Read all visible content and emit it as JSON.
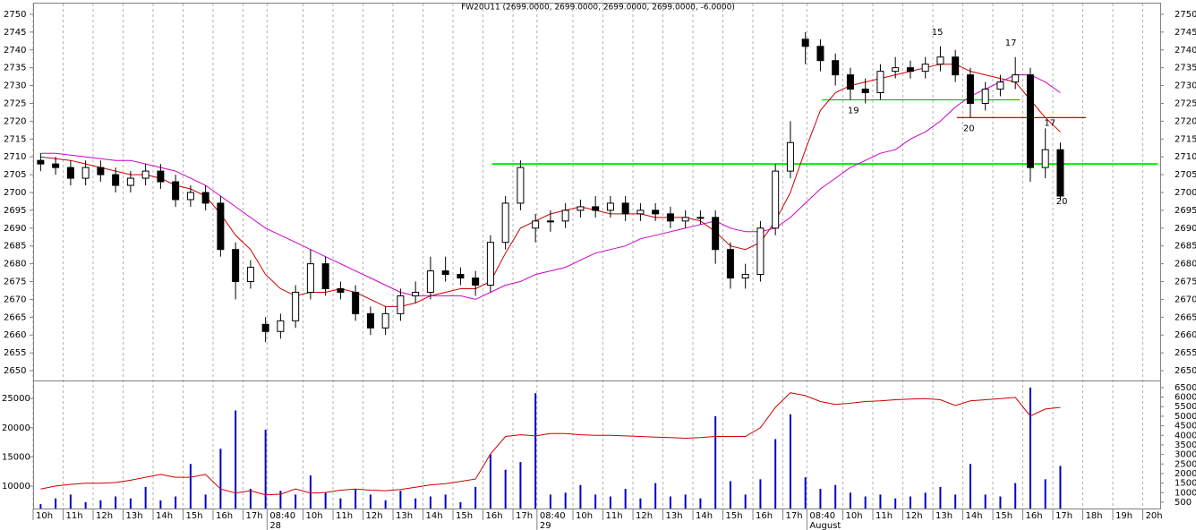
{
  "chart_data": {
    "type": "candlestick",
    "title": "FW20U11 (2699.0000, 2699.0000, 2699.0000, 2699.0000, -6.0000)",
    "xlim": [
      0,
      37.58
    ],
    "xticks": [
      {
        "value": 0,
        "label": "10h"
      },
      {
        "value": 1,
        "label": "11h"
      },
      {
        "value": 2,
        "label": "12h"
      },
      {
        "value": 3,
        "label": "13h"
      },
      {
        "value": 4,
        "label": "14h"
      },
      {
        "value": 5,
        "label": "15h"
      },
      {
        "value": 6,
        "label": "16h"
      },
      {
        "value": 7,
        "label": "17h"
      },
      {
        "value": 7.8,
        "label": "08:40"
      },
      {
        "value": 9,
        "label": "10h"
      },
      {
        "value": 10,
        "label": "11h"
      },
      {
        "value": 11,
        "label": "12h"
      },
      {
        "value": 12,
        "label": "13h"
      },
      {
        "value": 13,
        "label": "14h"
      },
      {
        "value": 14,
        "label": "15h"
      },
      {
        "value": 15,
        "label": "16h"
      },
      {
        "value": 16,
        "label": "17h"
      },
      {
        "value": 16.8,
        "label": "08:40"
      },
      {
        "value": 18,
        "label": "10h"
      },
      {
        "value": 19,
        "label": "11h"
      },
      {
        "value": 20,
        "label": "12h"
      },
      {
        "value": 21,
        "label": "13h"
      },
      {
        "value": 22,
        "label": "14h"
      },
      {
        "value": 23,
        "label": "15h"
      },
      {
        "value": 24,
        "label": "16h"
      },
      {
        "value": 25,
        "label": "17h"
      },
      {
        "value": 25.8,
        "label": "08:40"
      },
      {
        "value": 27,
        "label": "10h"
      },
      {
        "value": 28,
        "label": "11h"
      },
      {
        "value": 29,
        "label": "12h"
      },
      {
        "value": 30,
        "label": "13h"
      },
      {
        "value": 31,
        "label": "14h"
      },
      {
        "value": 32,
        "label": "15h"
      },
      {
        "value": 33,
        "label": "16h"
      },
      {
        "value": 34,
        "label": "17h"
      },
      {
        "value": 35,
        "label": "18h"
      },
      {
        "value": 36,
        "label": "19h"
      },
      {
        "value": 37,
        "label": "20h"
      }
    ],
    "xdates": [
      {
        "value": 7.8,
        "label": "28"
      },
      {
        "value": 16.8,
        "label": "29"
      },
      {
        "value": 25.8,
        "label": "August"
      }
    ],
    "ylim": [
      2647.25,
      2753
    ],
    "yticks": [
      2650,
      2655,
      2660,
      2665,
      2670,
      2675,
      2680,
      2685,
      2690,
      2695,
      2700,
      2705,
      2710,
      2715,
      2720,
      2725,
      2730,
      2735,
      2740,
      2745,
      2750
    ],
    "up_color": "#ffffff",
    "down_color": "#000000",
    "x": [
      0.25,
      0.75,
      1.25,
      1.75,
      2.25,
      2.75,
      3.25,
      3.75,
      4.25,
      4.75,
      5.25,
      5.75,
      6.25,
      6.75,
      7.25,
      7.75,
      8.25,
      8.75,
      9.25,
      9.75,
      10.25,
      10.75,
      11.25,
      11.75,
      12.25,
      12.75,
      13.25,
      13.75,
      14.25,
      14.75,
      15.25,
      15.75,
      16.25,
      16.75,
      17.25,
      17.75,
      18.25,
      18.75,
      19.25,
      19.75,
      20.25,
      20.75,
      21.25,
      21.75,
      22.25,
      22.75,
      23.25,
      23.75,
      24.25,
      24.75,
      25.25,
      25.75,
      26.25,
      26.75,
      27.25,
      27.75,
      28.25,
      28.75,
      29.25,
      29.75,
      30.25,
      30.75,
      31.25,
      31.75,
      32.25,
      32.75,
      33.25,
      33.75,
      34.25
    ],
    "open": [
      2709,
      2708,
      2707,
      2704,
      2707,
      2705,
      2702,
      2704,
      2706,
      2703,
      2698,
      2700,
      2697,
      2684,
      2675,
      2663,
      2661,
      2664,
      2672,
      2680,
      2673,
      2672,
      2666,
      2662,
      2666,
      2671,
      2672,
      2678,
      2677,
      2676,
      2674,
      2686,
      2697,
      2690,
      2692,
      2692,
      2695,
      2696,
      2695,
      2697,
      2694,
      2695,
      2694,
      2692,
      2693,
      2693,
      2684,
      2676,
      2677,
      2690,
      2706,
      2743,
      2741,
      2737,
      2733,
      2729,
      2728,
      2734,
      2735,
      2734,
      2736,
      2738,
      2733,
      2725,
      2729,
      2731,
      2733,
      2707,
      2712
    ],
    "high": [
      2711,
      2710,
      2709,
      2709,
      2709,
      2707,
      2706,
      2708,
      2708,
      2705,
      2702,
      2702,
      2699,
      2686,
      2681,
      2665,
      2666,
      2674,
      2684,
      2682,
      2675,
      2674,
      2668,
      2668,
      2673,
      2675,
      2682,
      2682,
      2679,
      2678,
      2688,
      2699,
      2709,
      2694,
      2695,
      2697,
      2698,
      2699,
      2699,
      2699,
      2697,
      2697,
      2696,
      2695,
      2695,
      2695,
      2686,
      2680,
      2692,
      2708,
      2720,
      2745,
      2743,
      2739,
      2735,
      2732,
      2736,
      2738,
      2737,
      2738,
      2741,
      2740,
      2735,
      2731,
      2733,
      2738,
      2735,
      2718,
      2714
    ],
    "low": [
      2706,
      2705,
      2702,
      2702,
      2703,
      2700,
      2700,
      2702,
      2701,
      2696,
      2696,
      2695,
      2682,
      2670,
      2673,
      2658,
      2659,
      2662,
      2670,
      2671,
      2670,
      2664,
      2660,
      2660,
      2664,
      2669,
      2670,
      2675,
      2674,
      2671,
      2672,
      2684,
      2695,
      2686,
      2689,
      2690,
      2693,
      2693,
      2693,
      2692,
      2692,
      2692,
      2690,
      2690,
      2691,
      2680,
      2673,
      2673,
      2675,
      2688,
      2704,
      2736,
      2734,
      2730,
      2726,
      2725,
      2726,
      2732,
      2732,
      2732,
      2734,
      2731,
      2721,
      2723,
      2727,
      2729,
      2703,
      2704,
      2698
    ],
    "close": [
      2708,
      2707,
      2704,
      2707,
      2705,
      2702,
      2704,
      2706,
      2703,
      2698,
      2700,
      2697,
      2684,
      2675,
      2679,
      2661,
      2664,
      2672,
      2680,
      2673,
      2672,
      2666,
      2662,
      2666,
      2671,
      2672,
      2678,
      2677,
      2676,
      2674,
      2686,
      2697,
      2707,
      2692,
      2692,
      2695,
      2696,
      2695,
      2697,
      2694,
      2695,
      2694,
      2692,
      2693,
      2693,
      2684,
      2676,
      2677,
      2690,
      2706,
      2714,
      2741,
      2737,
      2733,
      2729,
      2728,
      2734,
      2735,
      2734,
      2736,
      2738,
      2733,
      2725,
      2729,
      2731,
      2733,
      2707,
      2712,
      2699
    ],
    "overlays": [
      {
        "color": "#cc0000",
        "values": [
          2710,
          2709.5,
          2709,
          2708,
          2707,
          2706,
          2705,
          2705,
          2704,
          2702,
          2701,
          2699,
          2694,
          2688,
          2684,
          2677,
          2673,
          2671,
          2672,
          2672,
          2673,
          2672,
          2670,
          2668,
          2668,
          2669,
          2671,
          2672,
          2673,
          2673,
          2675,
          2683,
          2690,
          2692,
          2694,
          2695,
          2696,
          2695,
          2694,
          2694,
          2694,
          2693,
          2693,
          2693,
          2692,
          2689,
          2685,
          2684,
          2686,
          2692,
          2700,
          2712,
          2723,
          2728,
          2730,
          2731,
          2732,
          2733,
          2734,
          2735,
          2736,
          2736,
          2734,
          2733,
          2732,
          2731,
          2726,
          2721,
          2717
        ]
      },
      {
        "color": "#cc00cc",
        "values": [
          2711,
          2711,
          2710.5,
          2710,
          2709.5,
          2709,
          2709,
          2708,
          2707,
          2706,
          2704,
          2702,
          2699,
          2696,
          2693,
          2690,
          2688,
          2686,
          2684,
          2682,
          2680,
          2678,
          2676,
          2674,
          2672,
          2671,
          2671,
          2671,
          2671,
          2670,
          2672,
          2674,
          2675,
          2677,
          2678,
          2679,
          2681,
          2683,
          2684,
          2685,
          2687,
          2688,
          2689,
          2690,
          2691,
          2692,
          2690,
          2689,
          2689,
          2690,
          2693,
          2697,
          2701,
          2704,
          2707,
          2709,
          2711,
          2712,
          2715,
          2717,
          2720,
          2724,
          2727,
          2729,
          2731,
          2733,
          2733,
          2731,
          2728
        ]
      }
    ],
    "levels": [
      {
        "y": 2708,
        "x": [
          15.3,
          37.5
        ],
        "color": "#00ee00"
      },
      {
        "y": 2726,
        "x": [
          26.3,
          32.9
        ],
        "color": "#00cc00"
      },
      {
        "y": 2721,
        "x": [
          30.8,
          35.1
        ],
        "color": "#dd0000"
      }
    ],
    "annotations": [
      {
        "text": "19",
        "x": 27.35,
        "y": 2723,
        "color": "#dd0000"
      },
      {
        "text": "20",
        "x": 31.2,
        "y": 2718,
        "color": "#dd0000"
      },
      {
        "text": "20",
        "x": 34.3,
        "y": 2697.5,
        "color": "#dd0000"
      },
      {
        "text": "15",
        "x": 30.15,
        "y": 2745,
        "color": "#00bb00"
      },
      {
        "text": "17",
        "x": 32.6,
        "y": 2742,
        "color": "#00bb00"
      },
      {
        "text": "17",
        "x": 33.9,
        "y": 2719.5,
        "color": "#00bb00"
      }
    ],
    "lower_panel": {
      "line": {
        "color": "#cc0000",
        "ylim": [
          6150,
          28100
        ],
        "yticks": [
          10000,
          15000,
          20000,
          25000
        ],
        "values": [
          9500,
          10000,
          10300,
          10500,
          10500,
          10600,
          11000,
          11500,
          12000,
          11500,
          11500,
          12000,
          9500,
          8800,
          9200,
          8500,
          8600,
          9500,
          8800,
          8900,
          9300,
          9500,
          9300,
          9200,
          9400,
          9800,
          10200,
          10400,
          10800,
          11200,
          15500,
          18500,
          18800,
          18600,
          19000,
          19000,
          18800,
          18700,
          18700,
          18600,
          18500,
          18400,
          18300,
          18200,
          18300,
          18500,
          18500,
          18500,
          20000,
          23500,
          26000,
          25500,
          24500,
          24000,
          24200,
          24500,
          24600,
          24800,
          24900,
          25000,
          24800,
          23800,
          24600,
          24800,
          25000,
          25200,
          22000,
          23200,
          23500
        ]
      },
      "bars": {
        "color": "#0000cc",
        "ylim": [
          170,
          6870
        ],
        "yticks": [
          500,
          1000,
          1500,
          2000,
          2500,
          3000,
          3500,
          4000,
          4500,
          5000,
          5500,
          6000,
          6500
        ],
        "values": [
          400,
          700,
          900,
          500,
          600,
          800,
          700,
          1300,
          600,
          800,
          2500,
          900,
          3300,
          5300,
          1200,
          4300,
          1100,
          900,
          1900,
          1000,
          700,
          1200,
          900,
          600,
          1100,
          700,
          800,
          900,
          500,
          1300,
          3000,
          2200,
          2600,
          6200,
          900,
          1000,
          1400,
          900,
          800,
          1200,
          700,
          1500,
          800,
          900,
          700,
          5000,
          1600,
          900,
          1700,
          3800,
          5100,
          1800,
          1200,
          1400,
          1000,
          800,
          900,
          700,
          800,
          1000,
          1300,
          900,
          2500,
          900,
          800,
          1500,
          6500,
          1700,
          2400
        ]
      }
    }
  }
}
